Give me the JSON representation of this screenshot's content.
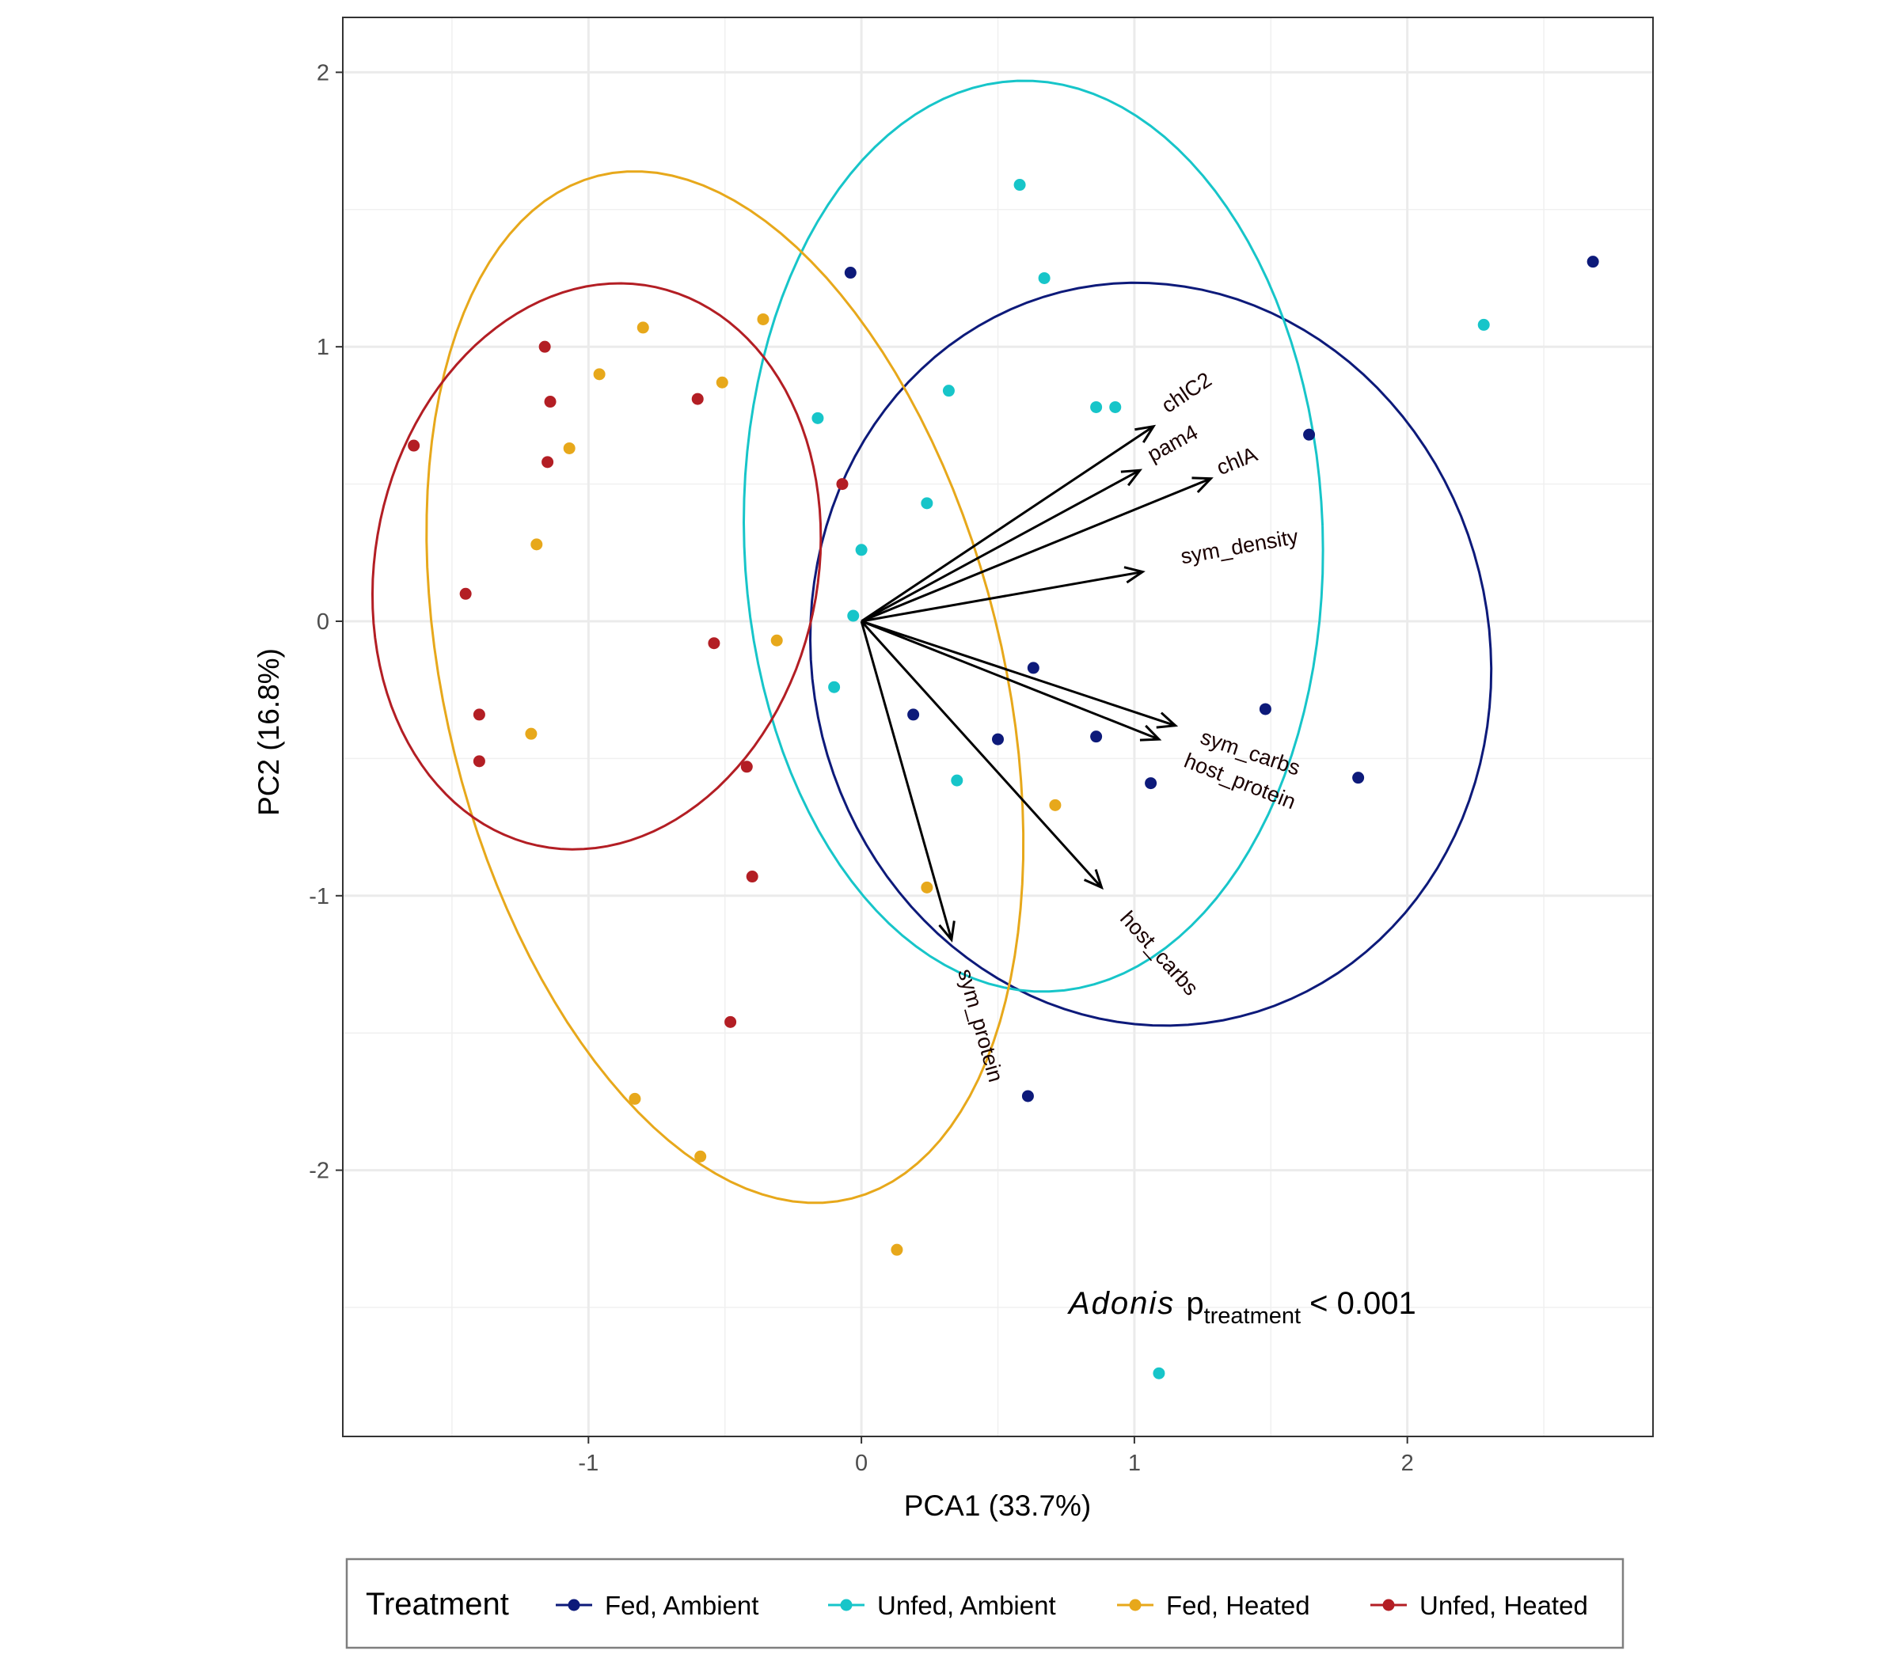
{
  "chart_data": {
    "type": "scatter",
    "xlabel": "PCA1 (33.7%)",
    "ylabel": "PC2 (16.8%)",
    "xlim": [
      -1.9,
      2.9
    ],
    "ylim": [
      -2.97,
      2.2
    ],
    "x_ticks": [
      -1,
      0,
      1,
      2
    ],
    "y_ticks": [
      -2,
      -1,
      0,
      1,
      2
    ],
    "x_tick_labels": [
      "-1",
      "0",
      "1",
      "2"
    ],
    "y_tick_labels": [
      "-2",
      "-1",
      "0",
      "1",
      "2"
    ],
    "grid": true,
    "legend": {
      "title": "Treatment",
      "position": "bottom",
      "entries": [
        "Fed, Ambient",
        "Unfed, Ambient",
        "Fed, Heated",
        "Unfed, Heated"
      ]
    },
    "annotation": {
      "italic": "Adonis",
      "main": "p",
      "subscript": "treatment",
      "rest": " < 0.001"
    },
    "series": [
      {
        "name": "Fed, Ambient",
        "color": "#0d1a7a",
        "points": [
          [
            -0.04,
            1.27
          ],
          [
            2.68,
            1.31
          ],
          [
            1.64,
            0.68
          ],
          [
            0.63,
            -0.17
          ],
          [
            0.19,
            -0.34
          ],
          [
            0.5,
            -0.43
          ],
          [
            0.86,
            -0.42
          ],
          [
            1.48,
            -0.32
          ],
          [
            1.06,
            -0.59
          ],
          [
            1.82,
            -0.57
          ],
          [
            0.61,
            -1.73
          ]
        ],
        "ellipse": {
          "cx": 1.06,
          "cy": -0.12,
          "rx": 1.24,
          "ry": 1.36,
          "angle_deg": 14
        }
      },
      {
        "name": "Unfed, Ambient",
        "color": "#17c5c9",
        "points": [
          [
            0.58,
            1.59
          ],
          [
            0.67,
            1.25
          ],
          [
            2.28,
            1.08
          ],
          [
            0.32,
            0.84
          ],
          [
            0.86,
            0.78
          ],
          [
            0.93,
            0.78
          ],
          [
            -0.16,
            0.74
          ],
          [
            0.24,
            0.43
          ],
          [
            0.0,
            0.26
          ],
          [
            -0.03,
            0.02
          ],
          [
            -0.1,
            -0.24
          ],
          [
            0.35,
            -0.58
          ],
          [
            1.09,
            -2.74
          ]
        ],
        "ellipse": {
          "cx": 0.63,
          "cy": 0.31,
          "rx": 1.06,
          "ry": 1.66,
          "angle_deg": 2
        }
      },
      {
        "name": "Fed, Heated",
        "color": "#e7a81b",
        "points": [
          [
            -0.36,
            1.1
          ],
          [
            -0.8,
            1.07
          ],
          [
            -0.96,
            0.9
          ],
          [
            -0.51,
            0.87
          ],
          [
            -1.07,
            0.63
          ],
          [
            -1.19,
            0.28
          ],
          [
            -0.31,
            -0.07
          ],
          [
            -1.21,
            -0.41
          ],
          [
            0.71,
            -0.67
          ],
          [
            0.24,
            -0.97
          ],
          [
            -0.83,
            -1.74
          ],
          [
            -0.59,
            -1.95
          ],
          [
            0.13,
            -2.29
          ]
        ],
        "ellipse": {
          "cx": -0.5,
          "cy": -0.24,
          "rx": 1.02,
          "ry": 1.92,
          "angle_deg": 14
        }
      },
      {
        "name": "Unfed, Heated",
        "color": "#b31e24",
        "points": [
          [
            -1.16,
            1.0
          ],
          [
            -1.14,
            0.8
          ],
          [
            -0.6,
            0.81
          ],
          [
            -1.64,
            0.64
          ],
          [
            -1.15,
            0.58
          ],
          [
            -0.07,
            0.5
          ],
          [
            -1.45,
            0.1
          ],
          [
            -0.54,
            -0.08
          ],
          [
            -1.4,
            -0.34
          ],
          [
            -1.4,
            -0.51
          ],
          [
            -0.42,
            -0.53
          ],
          [
            -0.4,
            -0.93
          ],
          [
            -0.48,
            -1.46
          ]
        ],
        "ellipse": {
          "cx": -0.97,
          "cy": 0.2,
          "rx": 0.81,
          "ry": 1.04,
          "angle_deg": -12
        }
      }
    ],
    "loadings": [
      {
        "name": "chlC2",
        "x": 1.07,
        "y": 0.71
      },
      {
        "name": "pam4",
        "x": 1.02,
        "y": 0.55
      },
      {
        "name": "chlA",
        "x": 1.28,
        "y": 0.52
      },
      {
        "name": "sym_density",
        "x": 1.03,
        "y": 0.18
      },
      {
        "name": "sym_carbs",
        "x": 1.15,
        "y": -0.38
      },
      {
        "name": "host_protein",
        "x": 1.09,
        "y": -0.43
      },
      {
        "name": "host_carbs",
        "x": 0.88,
        "y": -0.97
      },
      {
        "name": "sym_protein",
        "x": 0.33,
        "y": -1.16
      }
    ]
  }
}
